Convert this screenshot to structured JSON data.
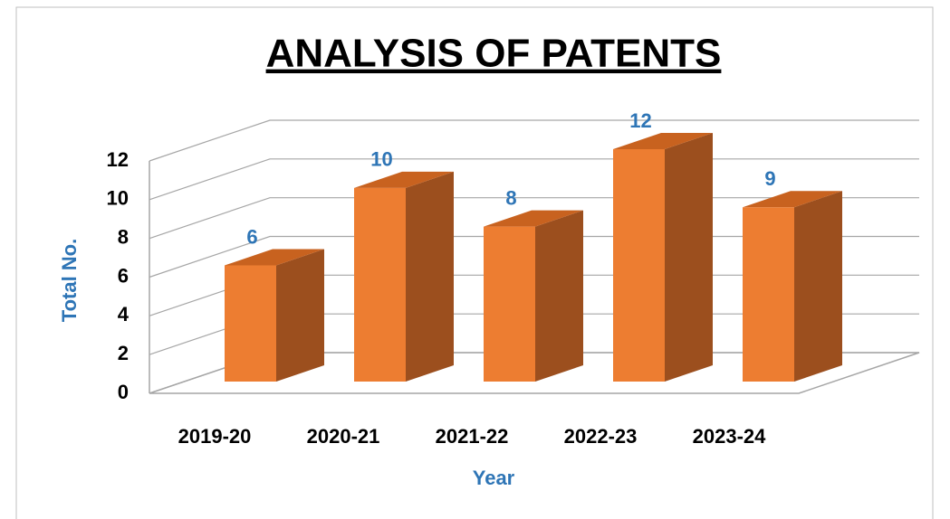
{
  "chart_data": {
    "type": "bar",
    "title": "ANALYSIS OF PATENTS",
    "x_label": "Year",
    "y_label": "Total No.",
    "categories": [
      "2019-20",
      "2020-21",
      "2021-22",
      "2022-23",
      "2023-24"
    ],
    "values": [
      6,
      10,
      8,
      12,
      9
    ],
    "color": "#ed7d31",
    "side_color": "#9c4f1e",
    "top_color": "#c8621f",
    "label_color": "#2e75b6",
    "ylim": [
      0,
      12
    ],
    "yticks": [
      0,
      2,
      4,
      6,
      8,
      10,
      12
    ],
    "grid": true
  }
}
